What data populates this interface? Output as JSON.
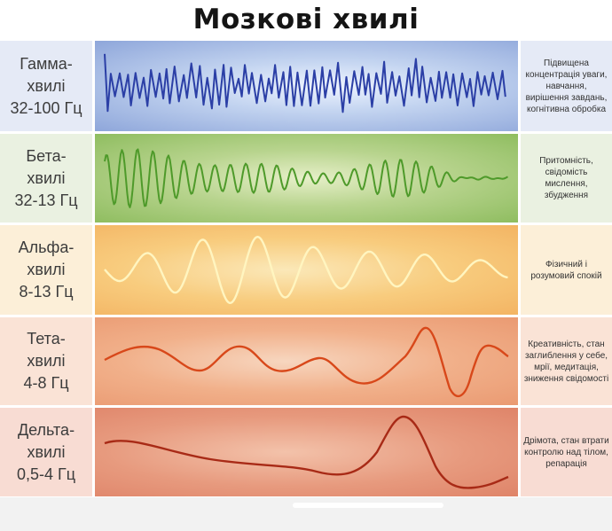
{
  "title": "Мозкові хвилі",
  "colors": {
    "gamma": "#2b3fa6",
    "beta": "#4e9a2a",
    "alpha": "#fff5c0",
    "theta": "#d8481a",
    "delta": "#a82a16"
  },
  "rows": [
    {
      "id": "gamma",
      "label": [
        "Гамма-",
        "хвилі",
        "32-100 Гц"
      ],
      "description": "Підвищена концентрація уваги, навчання, вирішення завдань, когнітивна обробка"
    },
    {
      "id": "beta",
      "label": [
        "Бета-",
        "хвилі",
        "32-13 Гц"
      ],
      "description": "Притомність, свідомість мислення, збудження"
    },
    {
      "id": "alpha",
      "label": [
        "Альфа-",
        "хвилі",
        "8-13 Гц"
      ],
      "description": "Фізичний і розумовий спокій"
    },
    {
      "id": "theta",
      "label": [
        "Тета-",
        "хвилі",
        "4-8 Гц"
      ],
      "description": "Креативність, стан заглиблення у себе, мрії, медитація, зниження свідомості"
    },
    {
      "id": "delta",
      "label": [
        "Дельта-",
        "хвилі",
        "0,5-4 Гц"
      ],
      "description": "Дрімота, стан втрати контролю над тілом, репарація"
    }
  ]
}
